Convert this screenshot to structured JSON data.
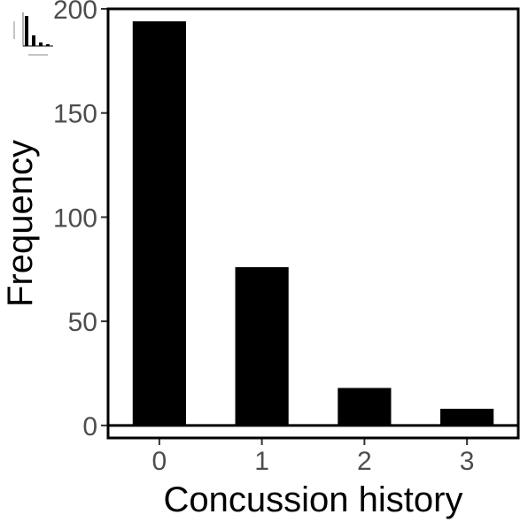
{
  "chart_data": {
    "type": "bar",
    "categories": [
      "0",
      "1",
      "2",
      "3"
    ],
    "values": [
      194,
      76,
      18,
      8
    ],
    "title": "",
    "xlabel": "Concussion history",
    "ylabel": "Frequency",
    "ylim": [
      -6,
      200
    ],
    "yticks": [
      {
        "value": 0,
        "label": "0"
      },
      {
        "value": 50,
        "label": "50"
      },
      {
        "value": 100,
        "label": "100"
      },
      {
        "value": 150,
        "label": "150"
      },
      {
        "value": 200,
        "label": "200"
      }
    ],
    "grid": false,
    "legend": "none",
    "bar_color": "#000000"
  }
}
